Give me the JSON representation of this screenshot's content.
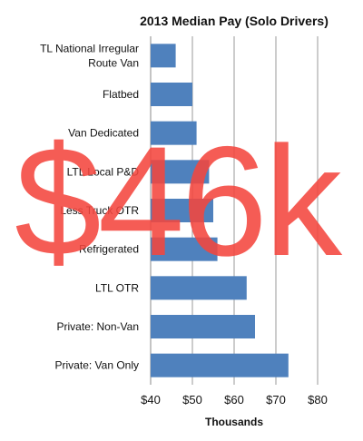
{
  "chart_data": {
    "type": "bar",
    "orientation": "horizontal",
    "title": "2013 Median Pay (Solo Drivers)",
    "xlabel": "Thousands",
    "ylabel": "",
    "categories": [
      [
        "TL National Irregular",
        "Route Van"
      ],
      [
        "Flatbed"
      ],
      [
        "Van Dedicated"
      ],
      [
        "LTL Local P&D"
      ],
      [
        "Less Truck OTR"
      ],
      [
        "Refrigerated"
      ],
      [
        "LTL OTR"
      ],
      [
        "Private: Non-Van"
      ],
      [
        "Private: Van Only"
      ]
    ],
    "values": [
      46,
      50,
      51,
      54,
      55,
      56,
      63,
      65,
      73
    ],
    "xlim": [
      40,
      80
    ],
    "xticks": [
      40,
      50,
      60,
      70,
      80
    ],
    "xtick_labels": [
      "$40",
      "$50",
      "$60",
      "$70",
      "$80"
    ],
    "grid": true,
    "bar_color": "#4f81bd"
  },
  "overlay": {
    "text": "$46k",
    "color": "#f4463e"
  }
}
